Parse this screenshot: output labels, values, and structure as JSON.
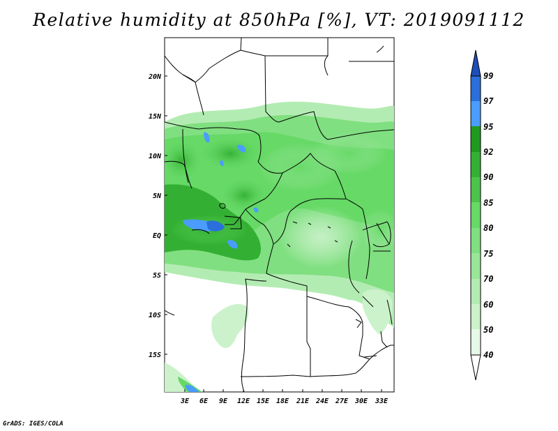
{
  "title": "Relative humidity at 850hPa [%], VT: 2019091112",
  "credit": "GrADS: IGES/COLA",
  "lat_labels": [
    "20N",
    "15N",
    "10N",
    "5N",
    "EQ",
    "5S",
    "10S",
    "15S"
  ],
  "lon_labels": [
    "3E",
    "6E",
    "9E",
    "12E",
    "15E",
    "18E",
    "21E",
    "24E",
    "27E",
    "30E",
    "33E"
  ],
  "colorbar": {
    "levels": [
      "40",
      "50",
      "60",
      "70",
      "75",
      "80",
      "85",
      "90",
      "92",
      "95",
      "97",
      "99"
    ],
    "colors": [
      "#ffffff",
      "#e6f9e6",
      "#ccf2cc",
      "#b3ecb3",
      "#99e699",
      "#80df80",
      "#66d966",
      "#4cc44c",
      "#33b033",
      "#1f9a1f",
      "#4a9cff",
      "#2a6fdb",
      "#1d4fb8"
    ]
  }
}
